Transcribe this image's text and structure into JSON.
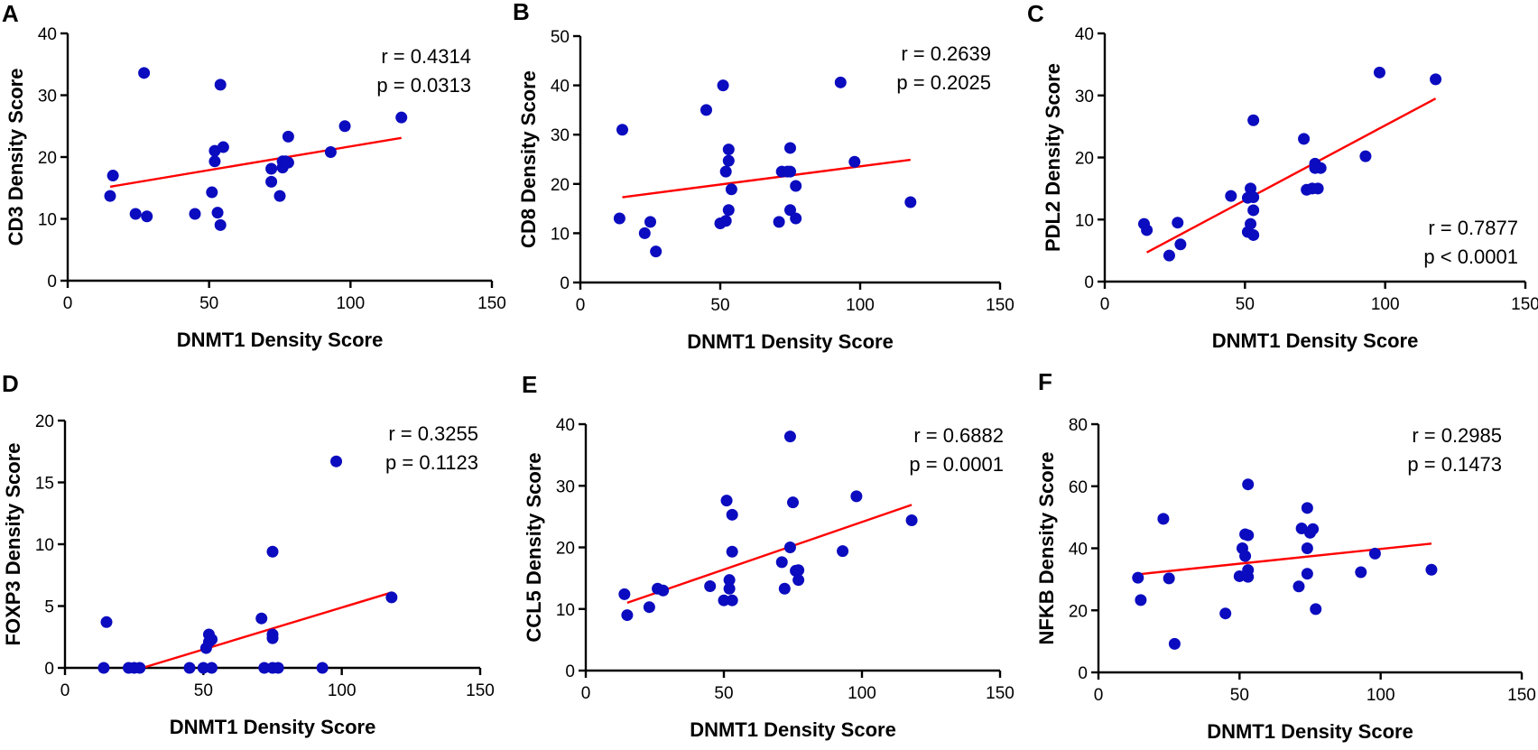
{
  "colors": {
    "points": "#0b0bbf",
    "fit_line": "#ff0000",
    "axes": "#000000"
  },
  "chart_data": [
    {
      "type": "scatter",
      "panel": "A",
      "xlabel": "DNMT1 Density Score",
      "ylabel": "CD3 Density Score",
      "xlim": [
        0,
        150
      ],
      "ylim": [
        0,
        40
      ],
      "xticks": [
        0,
        50,
        100,
        150
      ],
      "yticks": [
        0,
        10,
        20,
        30,
        40
      ],
      "annotation": {
        "r": "r = 0.4314",
        "p": "p = 0.0313"
      },
      "fit_line": {
        "x": [
          15,
          118
        ],
        "y": [
          15.2,
          23.1
        ]
      },
      "points": [
        [
          15,
          13.7
        ],
        [
          16,
          17
        ],
        [
          24,
          10.8
        ],
        [
          27,
          33.6
        ],
        [
          28,
          10.4
        ],
        [
          45,
          10.8
        ],
        [
          51,
          14.3
        ],
        [
          52,
          19.3
        ],
        [
          52,
          21
        ],
        [
          53,
          11
        ],
        [
          54,
          31.7
        ],
        [
          54,
          9
        ],
        [
          55,
          21.6
        ],
        [
          72,
          18.1
        ],
        [
          72,
          16
        ],
        [
          75,
          13.7
        ],
        [
          76,
          18.3
        ],
        [
          76,
          19.3
        ],
        [
          77,
          19.3
        ],
        [
          78,
          19.1
        ],
        [
          78,
          23.3
        ],
        [
          93,
          20.8
        ],
        [
          98,
          25
        ],
        [
          118,
          26.4
        ]
      ]
    },
    {
      "type": "scatter",
      "panel": "B",
      "xlabel": "DNMT1 Density Score",
      "ylabel": "CD8 Density Score",
      "xlim": [
        0,
        150
      ],
      "ylim": [
        0,
        50
      ],
      "xticks": [
        0,
        50,
        100,
        150
      ],
      "yticks": [
        0,
        10,
        20,
        30,
        40,
        50
      ],
      "annotation": {
        "r": "r = 0.2639",
        "p": "p = 0.2025"
      },
      "fit_line": {
        "x": [
          15,
          118
        ],
        "y": [
          17.3,
          24.9
        ]
      },
      "points": [
        [
          14,
          13
        ],
        [
          15,
          31
        ],
        [
          23,
          10
        ],
        [
          25,
          12.3
        ],
        [
          27,
          6.3
        ],
        [
          45,
          35
        ],
        [
          50,
          12
        ],
        [
          51,
          40
        ],
        [
          52,
          12.5
        ],
        [
          52,
          22.5
        ],
        [
          53,
          24.7
        ],
        [
          53,
          27
        ],
        [
          53,
          14.7
        ],
        [
          54,
          18.9
        ],
        [
          71,
          12.3
        ],
        [
          72,
          22.5
        ],
        [
          74,
          22.5
        ],
        [
          75,
          27.3
        ],
        [
          75,
          14.7
        ],
        [
          75,
          22.5
        ],
        [
          77,
          13
        ],
        [
          77,
          19.6
        ],
        [
          93,
          40.6
        ],
        [
          98,
          24.5
        ],
        [
          118,
          16.3
        ]
      ]
    },
    {
      "type": "scatter",
      "panel": "C",
      "xlabel": "DNMT1 Density Score",
      "ylabel": "PDL2 Density Score",
      "xlim": [
        0,
        150
      ],
      "ylim": [
        0,
        40
      ],
      "xticks": [
        0,
        50,
        100,
        150
      ],
      "yticks": [
        0,
        10,
        20,
        30,
        40
      ],
      "annotation": {
        "r": "r = 0.7877",
        "p": "p < 0.0001"
      },
      "fit_line": {
        "x": [
          15,
          118
        ],
        "y": [
          4.7,
          29.5
        ]
      },
      "points": [
        [
          14,
          9.3
        ],
        [
          15,
          8.3
        ],
        [
          23,
          4.2
        ],
        [
          26,
          9.5
        ],
        [
          27,
          6
        ],
        [
          45,
          13.8
        ],
        [
          51,
          13.5
        ],
        [
          51,
          8
        ],
        [
          52,
          15
        ],
        [
          52,
          9.3
        ],
        [
          53,
          7.5
        ],
        [
          53,
          11.5
        ],
        [
          53,
          13.6
        ],
        [
          53,
          26
        ],
        [
          71,
          23
        ],
        [
          72,
          14.8
        ],
        [
          74,
          15
        ],
        [
          75,
          19
        ],
        [
          75,
          18.3
        ],
        [
          76,
          15
        ],
        [
          77,
          18.3
        ],
        [
          93,
          20.2
        ],
        [
          98,
          33.7
        ],
        [
          118,
          32.6
        ]
      ]
    },
    {
      "type": "scatter",
      "panel": "D",
      "xlabel": "DNMT1 Density Score",
      "ylabel": "FOXP3 Density Score",
      "xlim": [
        0,
        150
      ],
      "ylim": [
        0,
        20
      ],
      "xticks": [
        0,
        50,
        100,
        150
      ],
      "yticks": [
        0,
        5,
        10,
        15,
        20
      ],
      "annotation": {
        "r": "r = 0.3255",
        "p": "p = 0.1123"
      },
      "fit_line": {
        "x": [
          28,
          118
        ],
        "y": [
          0,
          6.1
        ]
      },
      "points": [
        [
          14,
          0
        ],
        [
          15,
          3.7
        ],
        [
          23,
          0
        ],
        [
          25,
          0
        ],
        [
          27,
          0
        ],
        [
          45,
          0
        ],
        [
          50,
          0
        ],
        [
          51,
          1.6
        ],
        [
          52,
          2.1
        ],
        [
          52,
          2.7
        ],
        [
          53,
          2.3
        ],
        [
          53,
          0
        ],
        [
          71,
          4
        ],
        [
          72,
          0
        ],
        [
          75,
          0
        ],
        [
          75,
          2.7
        ],
        [
          75,
          2.4
        ],
        [
          75,
          9.4
        ],
        [
          77,
          0
        ],
        [
          93,
          0
        ],
        [
          98,
          16.7
        ],
        [
          118,
          5.7
        ]
      ]
    },
    {
      "type": "scatter",
      "panel": "E",
      "xlabel": "DNMT1 Density Score",
      "ylabel": "CCL5 Density Score",
      "xlim": [
        0,
        150
      ],
      "ylim": [
        0,
        40
      ],
      "xticks": [
        0,
        50,
        100,
        150
      ],
      "yticks": [
        0,
        10,
        20,
        30,
        40
      ],
      "annotation": {
        "r": "r = 0.6882",
        "p": "p = 0.0001"
      },
      "fit_line": {
        "x": [
          15,
          118
        ],
        "y": [
          11,
          26.9
        ]
      },
      "points": [
        [
          14,
          12.4
        ],
        [
          15,
          9
        ],
        [
          23,
          10.3
        ],
        [
          26,
          13.3
        ],
        [
          28,
          13
        ],
        [
          45,
          13.7
        ],
        [
          50,
          11.4
        ],
        [
          51,
          27.6
        ],
        [
          52,
          14.7
        ],
        [
          52,
          13.3
        ],
        [
          53,
          11.4
        ],
        [
          53,
          25.3
        ],
        [
          53,
          19.3
        ],
        [
          71,
          17.6
        ],
        [
          72,
          13.3
        ],
        [
          74,
          38
        ],
        [
          74,
          20
        ],
        [
          75,
          27.3
        ],
        [
          76,
          16.2
        ],
        [
          77,
          14.7
        ],
        [
          77,
          16.3
        ],
        [
          93,
          19.4
        ],
        [
          98,
          28.3
        ],
        [
          118,
          24.4
        ]
      ]
    },
    {
      "type": "scatter",
      "panel": "F",
      "xlabel": "DNMT1 Density Score",
      "ylabel": "NFKB Density Score",
      "xlim": [
        0,
        150
      ],
      "ylim": [
        0,
        80
      ],
      "xticks": [
        0,
        50,
        100,
        150
      ],
      "yticks": [
        0,
        20,
        40,
        60,
        80
      ],
      "annotation": {
        "r": "r = 0.2985",
        "p": "p = 0.1473"
      },
      "fit_line": {
        "x": [
          15,
          118
        ],
        "y": [
          31.7,
          41.5
        ]
      },
      "points": [
        [
          14,
          30.5
        ],
        [
          15,
          23.3
        ],
        [
          23,
          49.5
        ],
        [
          25,
          30.3
        ],
        [
          27,
          9.2
        ],
        [
          45,
          19
        ],
        [
          50,
          31
        ],
        [
          51,
          40
        ],
        [
          52,
          44.5
        ],
        [
          52,
          37.5
        ],
        [
          53,
          30.8
        ],
        [
          53,
          44.2
        ],
        [
          53,
          60.6
        ],
        [
          53,
          33
        ],
        [
          71,
          27.7
        ],
        [
          72,
          46.4
        ],
        [
          74,
          31.8
        ],
        [
          74,
          53
        ],
        [
          74,
          40
        ],
        [
          75,
          45
        ],
        [
          76,
          46.2
        ],
        [
          77,
          20.4
        ],
        [
          93,
          32.3
        ],
        [
          98,
          38.3
        ],
        [
          118,
          33.1
        ]
      ]
    }
  ]
}
